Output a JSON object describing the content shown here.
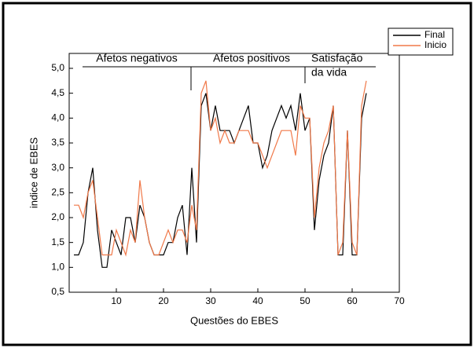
{
  "chart_data": {
    "type": "line",
    "xlabel": "Questões do EBES",
    "ylabel": "indice de EBES",
    "x": [
      1,
      2,
      3,
      4,
      5,
      6,
      7,
      8,
      9,
      10,
      11,
      12,
      13,
      14,
      15,
      16,
      17,
      18,
      19,
      20,
      21,
      22,
      23,
      24,
      25,
      26,
      27,
      28,
      29,
      30,
      31,
      32,
      33,
      34,
      35,
      36,
      37,
      38,
      39,
      40,
      41,
      42,
      43,
      44,
      45,
      46,
      47,
      48,
      49,
      50,
      51,
      52,
      53,
      54,
      55,
      56,
      57,
      58,
      59,
      60,
      61,
      62,
      63
    ],
    "series": [
      {
        "name": "Final",
        "color": "#000000",
        "values": [
          1.25,
          1.25,
          1.5,
          2.5,
          3.0,
          1.75,
          1.0,
          1.0,
          1.75,
          1.5,
          1.25,
          2.0,
          2.0,
          1.5,
          2.25,
          2.0,
          1.5,
          1.25,
          1.25,
          1.25,
          1.5,
          1.5,
          2.0,
          2.25,
          1.25,
          3.0,
          1.5,
          4.25,
          4.5,
          3.75,
          4.25,
          3.75,
          3.75,
          3.75,
          3.5,
          3.75,
          4.0,
          4.25,
          3.5,
          3.5,
          3.0,
          3.25,
          3.75,
          4.0,
          4.25,
          4.0,
          4.25,
          3.75,
          4.5,
          3.75,
          4.0,
          1.75,
          2.75,
          3.25,
          3.5,
          4.25,
          1.25,
          1.25,
          3.75,
          1.25,
          1.25,
          4.0,
          4.5
        ]
      },
      {
        "name": "Inicio",
        "color": "#f07848",
        "values": [
          2.25,
          2.25,
          2.0,
          2.5,
          2.75,
          2.0,
          1.25,
          1.25,
          1.25,
          1.75,
          1.5,
          1.25,
          1.75,
          1.5,
          2.75,
          2.0,
          1.5,
          1.25,
          1.25,
          1.5,
          1.75,
          1.5,
          1.75,
          1.75,
          1.5,
          2.25,
          1.75,
          4.5,
          4.75,
          3.75,
          4.0,
          3.5,
          3.75,
          3.5,
          3.5,
          3.75,
          3.75,
          3.75,
          3.5,
          3.5,
          3.25,
          3.0,
          3.25,
          3.5,
          3.75,
          3.75,
          3.75,
          3.25,
          4.25,
          4.0,
          4.0,
          2.0,
          3.0,
          3.5,
          3.75,
          4.25,
          1.25,
          1.5,
          3.75,
          1.5,
          1.25,
          4.25,
          4.75
        ]
      }
    ],
    "xlim": [
      0,
      70
    ],
    "xticks": [
      10,
      20,
      30,
      40,
      50,
      60,
      70
    ],
    "ylim": [
      0.5,
      5.3
    ],
    "yticks": [
      {
        "value": 0.5,
        "label": "0,5"
      },
      {
        "value": 1.0,
        "label": "1,0"
      },
      {
        "value": 1.5,
        "label": "1,5"
      },
      {
        "value": 2.0,
        "label": "2,0"
      },
      {
        "value": 2.5,
        "label": "2,5"
      },
      {
        "value": 3.0,
        "label": "3,0"
      },
      {
        "value": 3.5,
        "label": "3,5"
      },
      {
        "value": 4.0,
        "label": "4,0"
      },
      {
        "value": 4.5,
        "label": "4,5"
      },
      {
        "value": 5.0,
        "label": "5,0"
      }
    ],
    "annotations": [
      "Afetos negativos",
      "Afetos positivos",
      "Satisfação",
      "da vida"
    ],
    "legend": "top-right"
  }
}
